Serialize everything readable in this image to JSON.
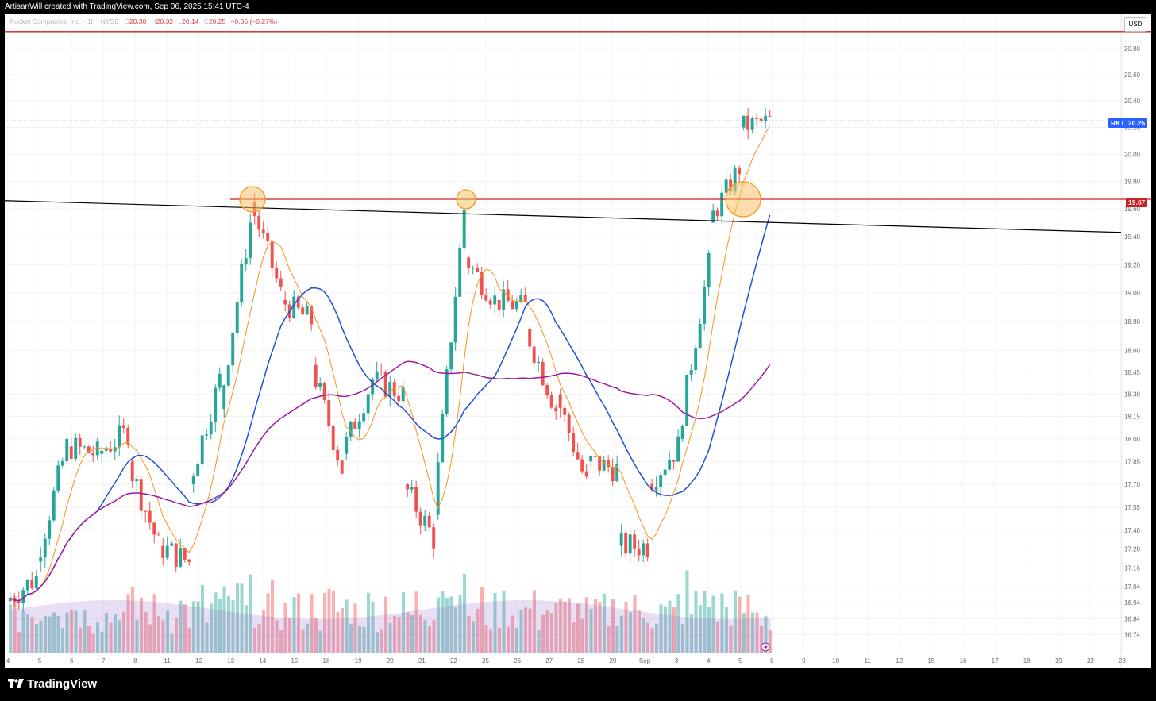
{
  "header": {
    "caption": "ArtisanWill created with TradingView.com, Sep 06, 2025 15:41 UTC-4"
  },
  "legend": {
    "symbol_text": "Rocket Companies, Inc. · 1h · NYSE",
    "open_label": "O",
    "open_value": "20.30",
    "high_label": "H",
    "high_value": "20.32",
    "low_label": "L",
    "low_value": "20.14",
    "close_label": "C",
    "close_value": "20.25",
    "change": "−0.05 (−0.27%)"
  },
  "currency_button": "USD",
  "price_tags": {
    "last": {
      "ticker": "RKT",
      "value": "20.25"
    },
    "resistance": {
      "value": "19.67"
    }
  },
  "footer": {
    "brand": "TradingView"
  },
  "chart_data": {
    "type": "candlestick",
    "title": "",
    "y_scale": "log",
    "y_tick_labels": [
      "20.80",
      "20.60",
      "20.40",
      "20.20",
      "20.00",
      "19.80",
      "19.60",
      "19.40",
      "19.20",
      "19.00",
      "18.80",
      "18.60",
      "18.45",
      "18.30",
      "18.15",
      "18.00",
      "17.85",
      "17.70",
      "17.55",
      "17.40",
      "17.28",
      "17.16",
      "17.04",
      "16.94",
      "16.84",
      "16.74"
    ],
    "x_tick_labels": [
      "4",
      "5",
      "6",
      "7",
      "8",
      "11",
      "12",
      "13",
      "14",
      "15",
      "18",
      "19",
      "20",
      "21",
      "22",
      "25",
      "26",
      "27",
      "28",
      "29",
      "Sep",
      "3",
      "4",
      "5",
      "8",
      "9",
      "10",
      "11",
      "12",
      "15",
      "16",
      "17",
      "18",
      "19",
      "22",
      "23"
    ],
    "day_open_closes": [
      [
        "4",
        16.95,
        17.1
      ],
      [
        "5",
        17.2,
        17.95
      ],
      [
        "6",
        17.95,
        17.9
      ],
      [
        "7",
        17.9,
        18.05
      ],
      [
        "8",
        17.85,
        17.3
      ],
      [
        "11",
        17.3,
        17.2
      ],
      [
        "12",
        17.7,
        18.4
      ],
      [
        "13",
        18.2,
        19.5
      ],
      [
        "14",
        19.65,
        19.0
      ],
      [
        "15",
        18.95,
        18.8
      ],
      [
        "18",
        18.5,
        17.8
      ],
      [
        "19",
        17.9,
        18.4
      ],
      [
        "20",
        18.4,
        18.3
      ],
      [
        "21",
        17.7,
        17.35
      ],
      [
        "22",
        17.5,
        19.6
      ],
      [
        "25",
        19.25,
        18.95
      ],
      [
        "26",
        18.95,
        18.9
      ],
      [
        "27",
        18.75,
        18.2
      ],
      [
        "28",
        18.3,
        17.7
      ],
      [
        "29",
        17.85,
        17.8
      ],
      [
        "Sep",
        17.3,
        17.3
      ],
      [
        "3",
        17.7,
        17.95
      ],
      [
        "4",
        18.0,
        19.2
      ],
      [
        "5",
        19.5,
        19.9
      ],
      [
        "8",
        20.2,
        20.25
      ]
    ],
    "moving_averages": [
      {
        "color": "#f7931a",
        "last": 19.88
      },
      {
        "color": "#1e50d8",
        "last": 19.13
      },
      {
        "color": "#9c1b9e",
        "last": 18.57
      }
    ],
    "horizontal_levels": [
      {
        "value": 19.67,
        "color": "#cc1f1f"
      },
      {
        "value": 20.93,
        "color": "#cc1f1f"
      }
    ],
    "trendline": {
      "from": [
        "4",
        19.66
      ],
      "to": [
        "23",
        19.43
      ],
      "color": "#000000"
    },
    "highlighted_touches": [
      "13",
      "22",
      "5"
    ],
    "last_price": 20.25
  },
  "colors": {
    "up": "#26a69a",
    "down": "#ef5350",
    "grid": "#f2f2f2"
  }
}
